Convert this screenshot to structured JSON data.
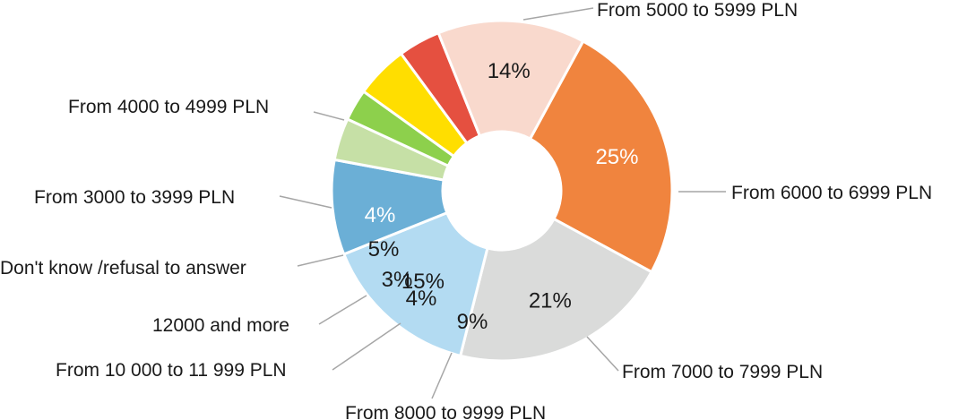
{
  "chart_data": {
    "type": "pie",
    "variant": "donut",
    "title": "",
    "legend": "none",
    "slices": [
      {
        "label": "From 5000 to 5999 PLN",
        "value": 25,
        "display": "25%",
        "color": "#f0843e",
        "text_color": "#ffffff"
      },
      {
        "label": "From 6000 to 6999 PLN",
        "value": 21,
        "display": "21%",
        "color": "#dadbda",
        "text_color": "#1a1a1a"
      },
      {
        "label": "From 7000 to 7999 PLN",
        "value": 15,
        "display": "15%",
        "color": "#b3dbf2",
        "text_color": "#1a1a1a"
      },
      {
        "label": "From 8000 to 9999 PLN",
        "value": 9,
        "display": "9%",
        "color": "#6bafd6",
        "text_color": "#1a1a1a"
      },
      {
        "label": "From 10 000 to 11 999 PLN",
        "value": 4,
        "display": "4%",
        "color": "#c6e0a6",
        "text_color": "#1a1a1a"
      },
      {
        "label": "12000 and more",
        "value": 3,
        "display": "3%",
        "color": "#8dd04c",
        "text_color": "#1a1a1a"
      },
      {
        "label": "Don't know /refusal to answer",
        "value": 5,
        "display": "5%",
        "color": "#ffde00",
        "text_color": "#1a1a1a"
      },
      {
        "label": "From 3000 to 3999 PLN",
        "value": 4,
        "display": "4%",
        "color": "#e55040",
        "text_color": "#ffffff"
      },
      {
        "label": "From 4000 to 4999 PLN",
        "value": 14,
        "display": "14%",
        "color": "#f9d9cd",
        "text_color": "#1a1a1a"
      }
    ]
  }
}
